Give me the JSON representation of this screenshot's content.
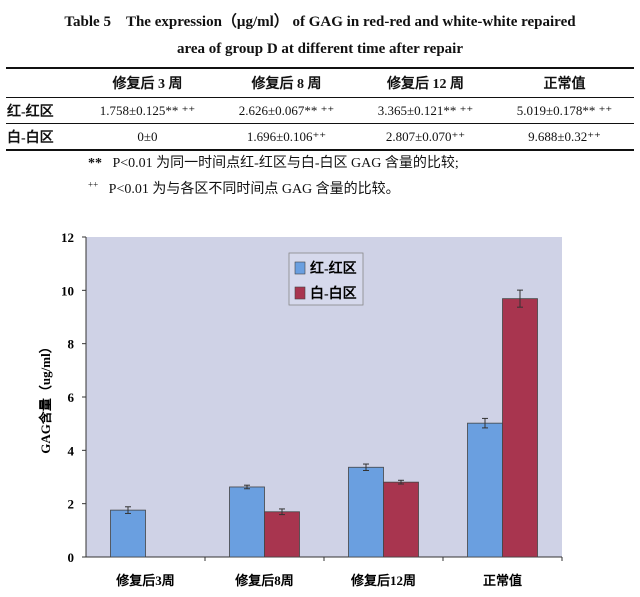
{
  "title_line1": "Table 5　The expression（μg/ml） of GAG in red-red and white-white repaired",
  "title_line2": "area of group D at different time after repair",
  "table": {
    "headers": [
      "",
      "修复后 3 周",
      "修复后 8 周",
      "修复后 12 周",
      "正常值"
    ],
    "rows": [
      {
        "label": "红-红区",
        "cells": [
          "1.758±0.125** ⁺⁺",
          "2.626±0.067** ⁺⁺",
          "3.365±0.121** ⁺⁺",
          "5.019±0.178** ⁺⁺"
        ]
      },
      {
        "label": "白-白区",
        "cells": [
          "0±0",
          "1.696±0.106⁺⁺",
          "2.807±0.070⁺⁺",
          "9.688±0.32⁺⁺"
        ]
      }
    ]
  },
  "notes": [
    {
      "mark": "**",
      "text": "P<0.01  为同一时间点红-红区与白-白区 GAG 含量的比较;"
    },
    {
      "mark": "++",
      "text": "P<0.01  为与各区不同时间点 GAG 含量的比较。"
    }
  ],
  "chart_data": {
    "type": "bar",
    "categories": [
      "修复后3周",
      "修复后8周",
      "修复后12周",
      "正常值"
    ],
    "series": [
      {
        "name": "红-红区",
        "color": "#6a9fe0",
        "values": [
          1.758,
          2.626,
          3.365,
          5.019
        ],
        "errors": [
          0.125,
          0.067,
          0.121,
          0.178
        ]
      },
      {
        "name": "白-白区",
        "color": "#a8354f",
        "values": [
          0,
          1.696,
          2.807,
          9.688
        ],
        "errors": [
          0,
          0.106,
          0.07,
          0.32
        ]
      }
    ],
    "ylabel": "GAG含量（ug/ml）",
    "ylim": [
      0,
      12
    ],
    "yticks": [
      "0",
      "2",
      "4",
      "6",
      "8",
      "10",
      "12"
    ],
    "legend": "top-center",
    "grid": false,
    "background": "#cfd2e6"
  }
}
